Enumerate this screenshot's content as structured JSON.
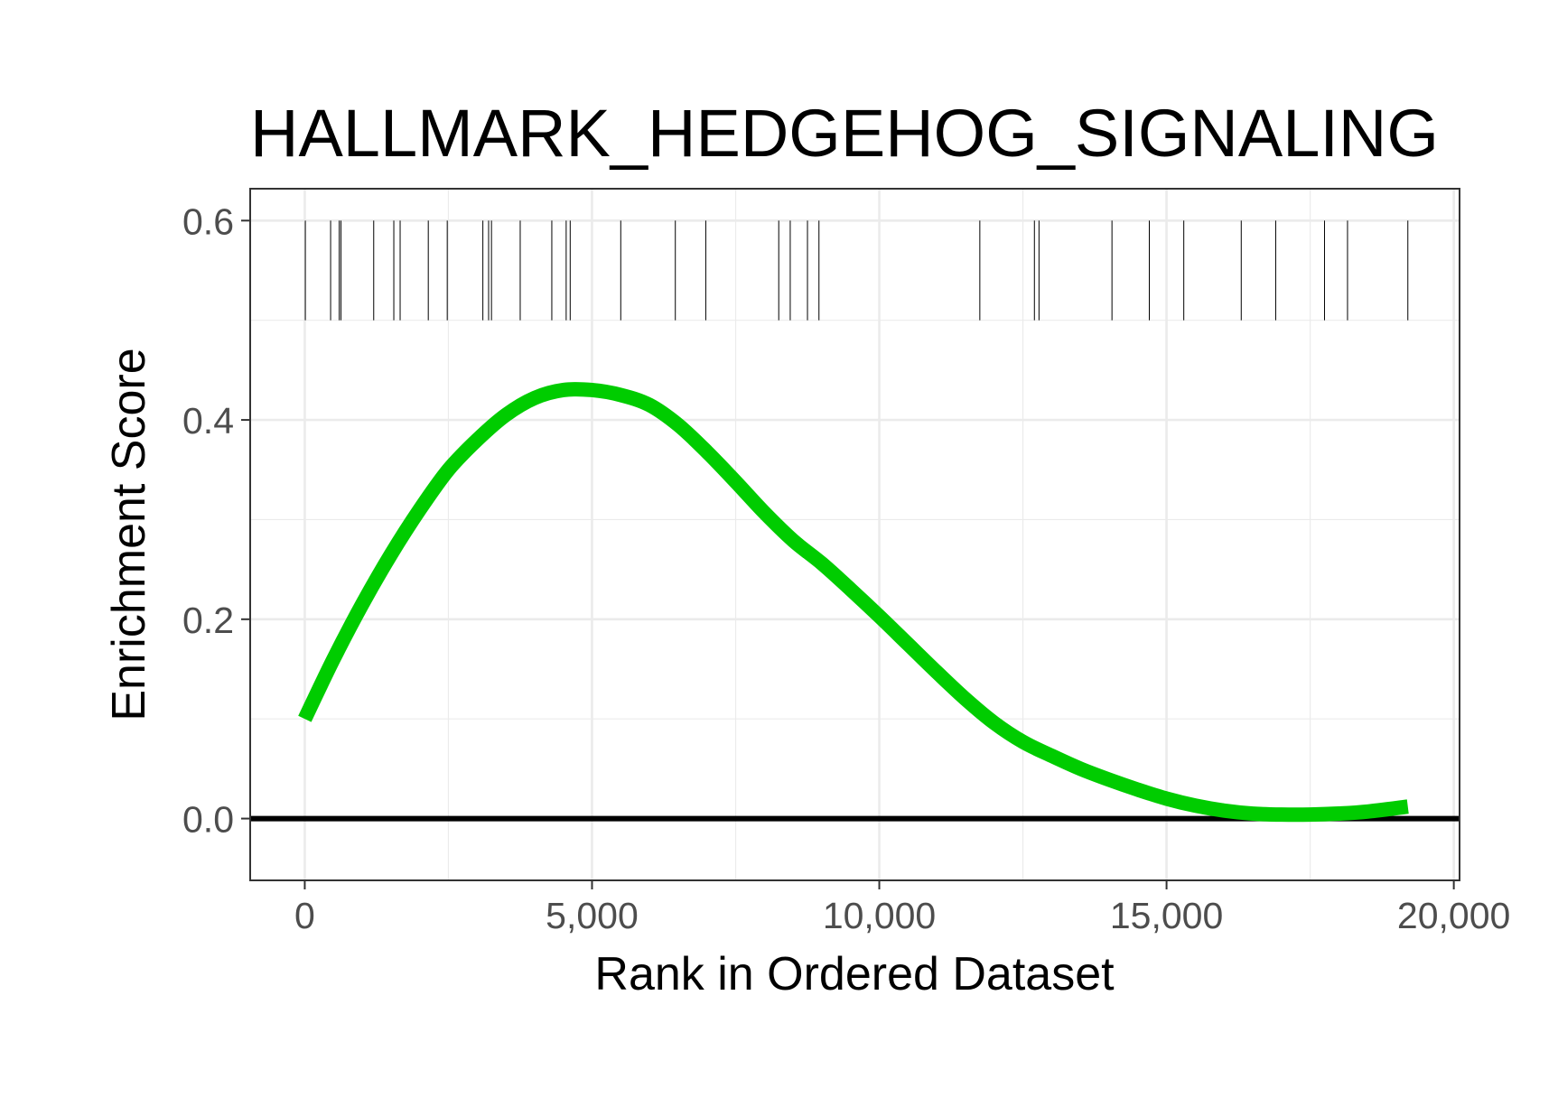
{
  "chart_data": {
    "type": "line",
    "title": "HALLMARK_HEDGEHOG_SIGNALING",
    "xlabel": "Rank in Ordered Dataset",
    "ylabel": "Enrichment Score",
    "xlim": [
      -950,
      20100
    ],
    "ylim": [
      -0.062,
      0.632
    ],
    "x_ticks": [
      0,
      5000,
      10000,
      15000,
      20000
    ],
    "x_tick_labels": [
      "0",
      "5,000",
      "10,000",
      "15,000",
      "20,000"
    ],
    "y_ticks": [
      0.0,
      0.2,
      0.4,
      0.6
    ],
    "y_tick_labels": [
      "0.0",
      "0.2",
      "0.4",
      "0.6"
    ],
    "grid": true,
    "zero_line": 0.0,
    "gene_hit_band": [
      0.5,
      0.6
    ],
    "series": [
      {
        "color": "#00cc00",
        "x": [
          0,
          500,
          1000,
          1500,
          2000,
          2500,
          3000,
          3500,
          4000,
          4500,
          5000,
          5500,
          6000,
          6500,
          7000,
          7500,
          8000,
          8500,
          9000,
          9500,
          10000,
          10500,
          11000,
          11500,
          12000,
          12500,
          13000,
          13500,
          14000,
          14500,
          15000,
          15500,
          16000,
          16500,
          17000,
          17500,
          18000,
          18500,
          19200
        ],
        "values": [
          0.1,
          0.16,
          0.215,
          0.265,
          0.31,
          0.35,
          0.38,
          0.405,
          0.422,
          0.43,
          0.43,
          0.425,
          0.415,
          0.395,
          0.368,
          0.338,
          0.307,
          0.279,
          0.256,
          0.23,
          0.203,
          0.175,
          0.147,
          0.12,
          0.096,
          0.077,
          0.063,
          0.05,
          0.039,
          0.029,
          0.02,
          0.013,
          0.008,
          0.005,
          0.004,
          0.004,
          0.005,
          0.007,
          0.012
        ]
      }
    ],
    "gene_hits": [
      10,
      450,
      600,
      630,
      1200,
      1550,
      1660,
      2150,
      2480,
      3100,
      3200,
      3250,
      3750,
      4300,
      4550,
      4620,
      5500,
      6450,
      6980,
      8250,
      8450,
      8750,
      8950,
      11750,
      12700,
      12780,
      14050,
      14700,
      15300,
      16300,
      16900,
      17750,
      18150,
      19200
    ]
  },
  "colors": {
    "line": "#00cc00",
    "zero_line": "#000000",
    "hits": "#000000",
    "grid": "#ebebeb",
    "panel_border": "#333333",
    "tick_label": "#4d4d4d"
  }
}
